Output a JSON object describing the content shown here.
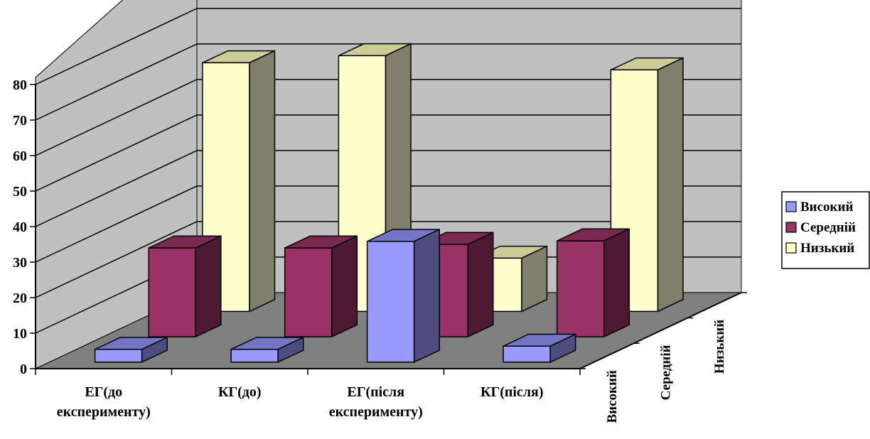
{
  "chart_data": {
    "type": "bar",
    "variant": "3d-clustered",
    "categories": [
      [
        "ЕГ(до",
        "експерименту)"
      ],
      [
        "КГ(до)"
      ],
      [
        "ЕГ(після",
        "експерименту)"
      ],
      [
        "КГ(після)"
      ]
    ],
    "depth_labels": [
      "Високий",
      "Середній",
      "Низький"
    ],
    "ylim": [
      0,
      80
    ],
    "yticks": [
      0,
      10,
      20,
      30,
      40,
      50,
      60,
      70,
      80
    ],
    "grid": true,
    "legend": "right",
    "series": [
      {
        "name": "Високий",
        "values": [
          3.6,
          3.6,
          34,
          4.5
        ],
        "colors": {
          "front": "#9999FF",
          "top": "#7575C6",
          "side": "#4D4D80"
        }
      },
      {
        "name": "Середній",
        "values": [
          25,
          25,
          26,
          27
        ],
        "colors": {
          "front": "#993366",
          "top": "#7A2952",
          "side": "#4D1933"
        }
      },
      {
        "name": "Низький",
        "values": [
          70,
          72,
          15,
          68
        ],
        "colors": {
          "front": "#FFFFCC",
          "top": "#CCCC99",
          "side": "#80806A"
        }
      }
    ],
    "colors": {
      "wall": "#C0C0C0",
      "floor": "#808080",
      "grid": "#000000"
    }
  }
}
